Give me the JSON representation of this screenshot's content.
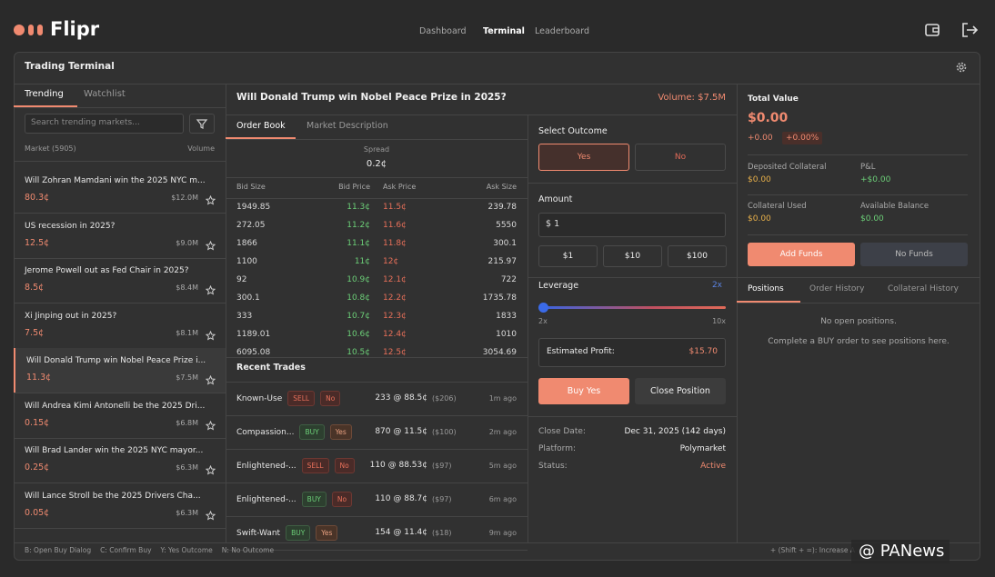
{
  "header": {
    "logo": "Flipr",
    "nav": [
      "Dashboard",
      "Terminal",
      "Leaderboard"
    ]
  },
  "panel_title": "Trading Terminal",
  "sidebar": {
    "tabs": [
      "Trending",
      "Watchlist"
    ],
    "search_placeholder": "Search trending markets...",
    "list_header": [
      "Market (5905)",
      "Volume"
    ],
    "markets": [
      {
        "title": "Will Zohran Mamdani win the 2025 NYC m...",
        "price": "80.3¢",
        "volume": "$12.0M"
      },
      {
        "title": "US recession in 2025?",
        "price": "12.5¢",
        "volume": "$9.0M"
      },
      {
        "title": "Jerome Powell out as Fed Chair in 2025?",
        "price": "8.5¢",
        "volume": "$8.4M"
      },
      {
        "title": "Xi Jinping out in 2025?",
        "price": "7.5¢",
        "volume": "$8.1M"
      },
      {
        "title": "Will Donald Trump win Nobel Peace Prize i...",
        "price": "11.3¢",
        "volume": "$7.5M"
      },
      {
        "title": "Will Andrea Kimi Antonelli be the 2025 Dri...",
        "price": "0.15¢",
        "volume": "$6.8M"
      },
      {
        "title": "Will Brad Lander win the 2025 NYC mayor...",
        "price": "0.25¢",
        "volume": "$6.3M"
      },
      {
        "title": "Will Lance Stroll be the 2025 Drivers Cha...",
        "price": "0.05¢",
        "volume": "$6.3M"
      }
    ]
  },
  "market": {
    "title": "Will Donald Trump win Nobel Peace Prize in 2025?",
    "volume": "Volume: $7.5M",
    "tabs": [
      "Order Book",
      "Market Description"
    ],
    "spread_label": "Spread",
    "spread": "0.2¢",
    "order_book": {
      "columns": [
        "Bid Size",
        "Bid Price",
        "Ask Price",
        "Ask Size"
      ],
      "rows": [
        [
          "1949.85",
          "11.3¢",
          "11.5¢",
          "239.78"
        ],
        [
          "272.05",
          "11.2¢",
          "11.6¢",
          "5550"
        ],
        [
          "1866",
          "11.1¢",
          "11.8¢",
          "300.1"
        ],
        [
          "1100",
          "11¢",
          "12¢",
          "215.97"
        ],
        [
          "92",
          "10.9¢",
          "12.1¢",
          "722"
        ],
        [
          "300.1",
          "10.8¢",
          "12.2¢",
          "1735.78"
        ],
        [
          "333",
          "10.7¢",
          "12.3¢",
          "1833"
        ],
        [
          "1189.01",
          "10.6¢",
          "12.4¢",
          "1010"
        ],
        [
          "6095.08",
          "10.5¢",
          "12.5¢",
          "3054.69"
        ]
      ]
    },
    "recent_trades": {
      "title": "Recent Trades",
      "rows": [
        {
          "trader": "Known-Use",
          "side": "SELL",
          "outcome": "No",
          "detail": "233 @ 88.5¢",
          "amount": "($206)",
          "time": "1m ago"
        },
        {
          "trader": "Compassion...",
          "side": "BUY",
          "outcome": "Yes",
          "detail": "870 @ 11.5¢",
          "amount": "($100)",
          "time": "2m ago"
        },
        {
          "trader": "Enlightened-...",
          "side": "SELL",
          "outcome": "No",
          "detail": "110 @ 88.53¢",
          "amount": "($97)",
          "time": "5m ago"
        },
        {
          "trader": "Enlightened-...",
          "side": "BUY",
          "outcome": "No",
          "detail": "110 @ 88.7¢",
          "amount": "($97)",
          "time": "6m ago"
        },
        {
          "trader": "Swift-Want",
          "side": "BUY",
          "outcome": "Yes",
          "detail": "154 @ 11.4¢",
          "amount": "($18)",
          "time": "9m ago"
        }
      ]
    }
  },
  "trade": {
    "select_outcome": "Select Outcome",
    "outcomes": [
      "Yes",
      "No"
    ],
    "amount_label": "Amount",
    "amount_input": "$ 1",
    "presets": [
      "$1",
      "$10",
      "$100"
    ],
    "leverage_label": "Leverage",
    "leverage_value": "2x",
    "leverage_min": "2x",
    "leverage_max": "10x",
    "estimated_profit_label": "Estimated Profit:",
    "estimated_profit": "$15.70",
    "buy_button": "Buy Yes",
    "close_button": "Close Position",
    "info": [
      {
        "label": "Close Date:",
        "value": "Dec 31, 2025 (142 days)"
      },
      {
        "label": "Platform:",
        "value": "Polymarket"
      },
      {
        "label": "Status:",
        "value": "Active"
      }
    ]
  },
  "portfolio": {
    "total_label": "Total Value",
    "total": "$0.00",
    "change": "+0.00",
    "change_pct": "+0.00%",
    "stats": [
      {
        "label": "Deposited Collateral",
        "value": "$0.00"
      },
      {
        "label": "P&L",
        "value": "+$0.00"
      },
      {
        "label": "Collateral Used",
        "value": "$0.00"
      },
      {
        "label": "Available Balance",
        "value": "$0.00"
      }
    ],
    "add_funds": "Add Funds",
    "no_funds": "No Funds",
    "tabs": [
      "Positions",
      "Order History",
      "Collateral History"
    ],
    "empty_title": "No open positions.",
    "empty_hint": "Complete a BUY order to see positions here."
  },
  "footer": {
    "shortcuts": [
      "B: Open Buy Dialog",
      "C: Confirm Buy",
      "Y: Yes Outcome",
      "N: No Outcome"
    ],
    "right": "+ (Shift + =): Increase A"
  },
  "watermark": "@ PANews"
}
